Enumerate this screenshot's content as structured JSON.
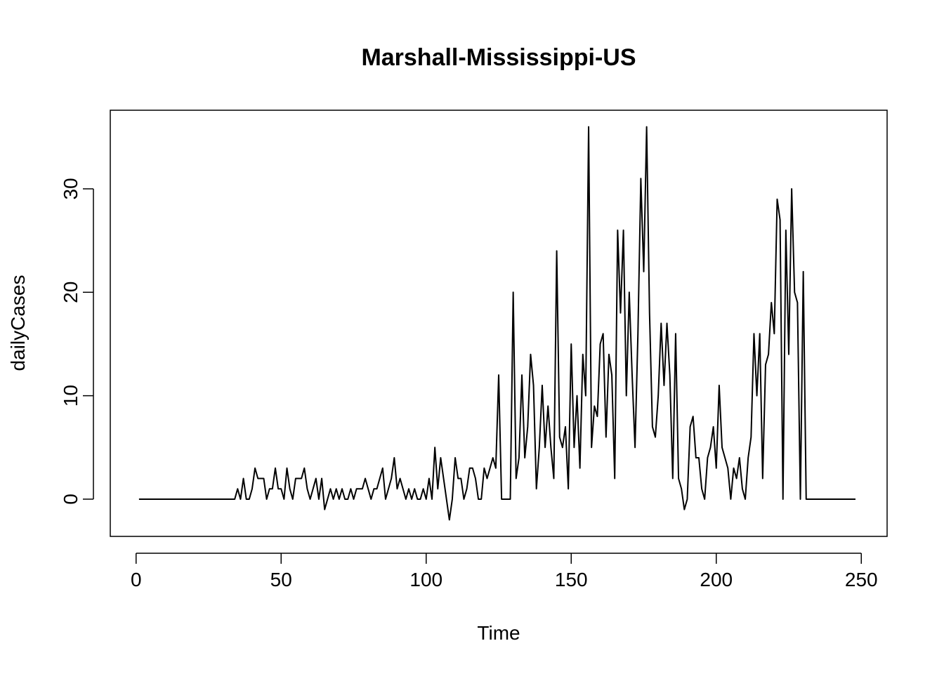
{
  "chart_data": {
    "type": "line",
    "title": "Marshall-Mississippi-US",
    "xlabel": "Time",
    "ylabel": "dailyCases",
    "xlim": [
      -8.9,
      258.9
    ],
    "ylim": [
      -3.6,
      37.6
    ],
    "xticks": [
      0,
      50,
      100,
      150,
      200,
      250
    ],
    "yticks": [
      0,
      10,
      20,
      30
    ],
    "grid": false,
    "series": [
      {
        "x_start": 1,
        "values": [
          0,
          0,
          0,
          0,
          0,
          0,
          0,
          0,
          0,
          0,
          0,
          0,
          0,
          0,
          0,
          0,
          0,
          0,
          0,
          0,
          0,
          0,
          0,
          0,
          0,
          0,
          0,
          0,
          0,
          0,
          0,
          0,
          0,
          0,
          1,
          0,
          2,
          0,
          0,
          1,
          3,
          2,
          2,
          2,
          0,
          1,
          1,
          3,
          1,
          1,
          0,
          3,
          1,
          0,
          2,
          2,
          2,
          3,
          1,
          0,
          1,
          2,
          0,
          2,
          -1,
          0,
          1,
          0,
          1,
          0,
          1,
          0,
          0,
          1,
          0,
          1,
          1,
          1,
          2,
          1,
          0,
          1,
          1,
          2,
          3,
          0,
          1,
          2,
          4,
          1,
          2,
          1,
          0,
          1,
          0,
          1,
          0,
          0,
          1,
          0,
          2,
          0,
          5,
          1,
          4,
          2,
          0,
          -2,
          0,
          4,
          2,
          2,
          0,
          1,
          3,
          3,
          2,
          0,
          0,
          3,
          2,
          3,
          4,
          3,
          12,
          0,
          0,
          0,
          0,
          20,
          2,
          4,
          12,
          4,
          7,
          14,
          11,
          1,
          5,
          11,
          5,
          9,
          5,
          2,
          24,
          6,
          5,
          7,
          1,
          15,
          5,
          10,
          3,
          14,
          10,
          36,
          5,
          9,
          8,
          15,
          16,
          6,
          14,
          12,
          2,
          26,
          18,
          26,
          10,
          20,
          12,
          5,
          16,
          31,
          22,
          36,
          18,
          7,
          6,
          10,
          17,
          11,
          17,
          12,
          2,
          16,
          2,
          1,
          -1,
          0,
          7,
          8,
          4,
          4,
          1,
          0,
          4,
          5,
          7,
          3,
          11,
          5,
          4,
          3,
          0,
          3,
          2,
          4,
          1,
          0,
          4,
          6,
          16,
          10,
          16,
          2,
          13,
          14,
          19,
          16,
          29,
          27,
          0,
          26,
          14,
          30,
          20,
          19,
          0,
          22,
          0,
          0,
          0,
          0,
          0,
          0,
          0,
          0,
          0,
          0,
          0,
          0,
          0,
          0,
          0,
          0,
          0,
          0
        ]
      }
    ]
  }
}
